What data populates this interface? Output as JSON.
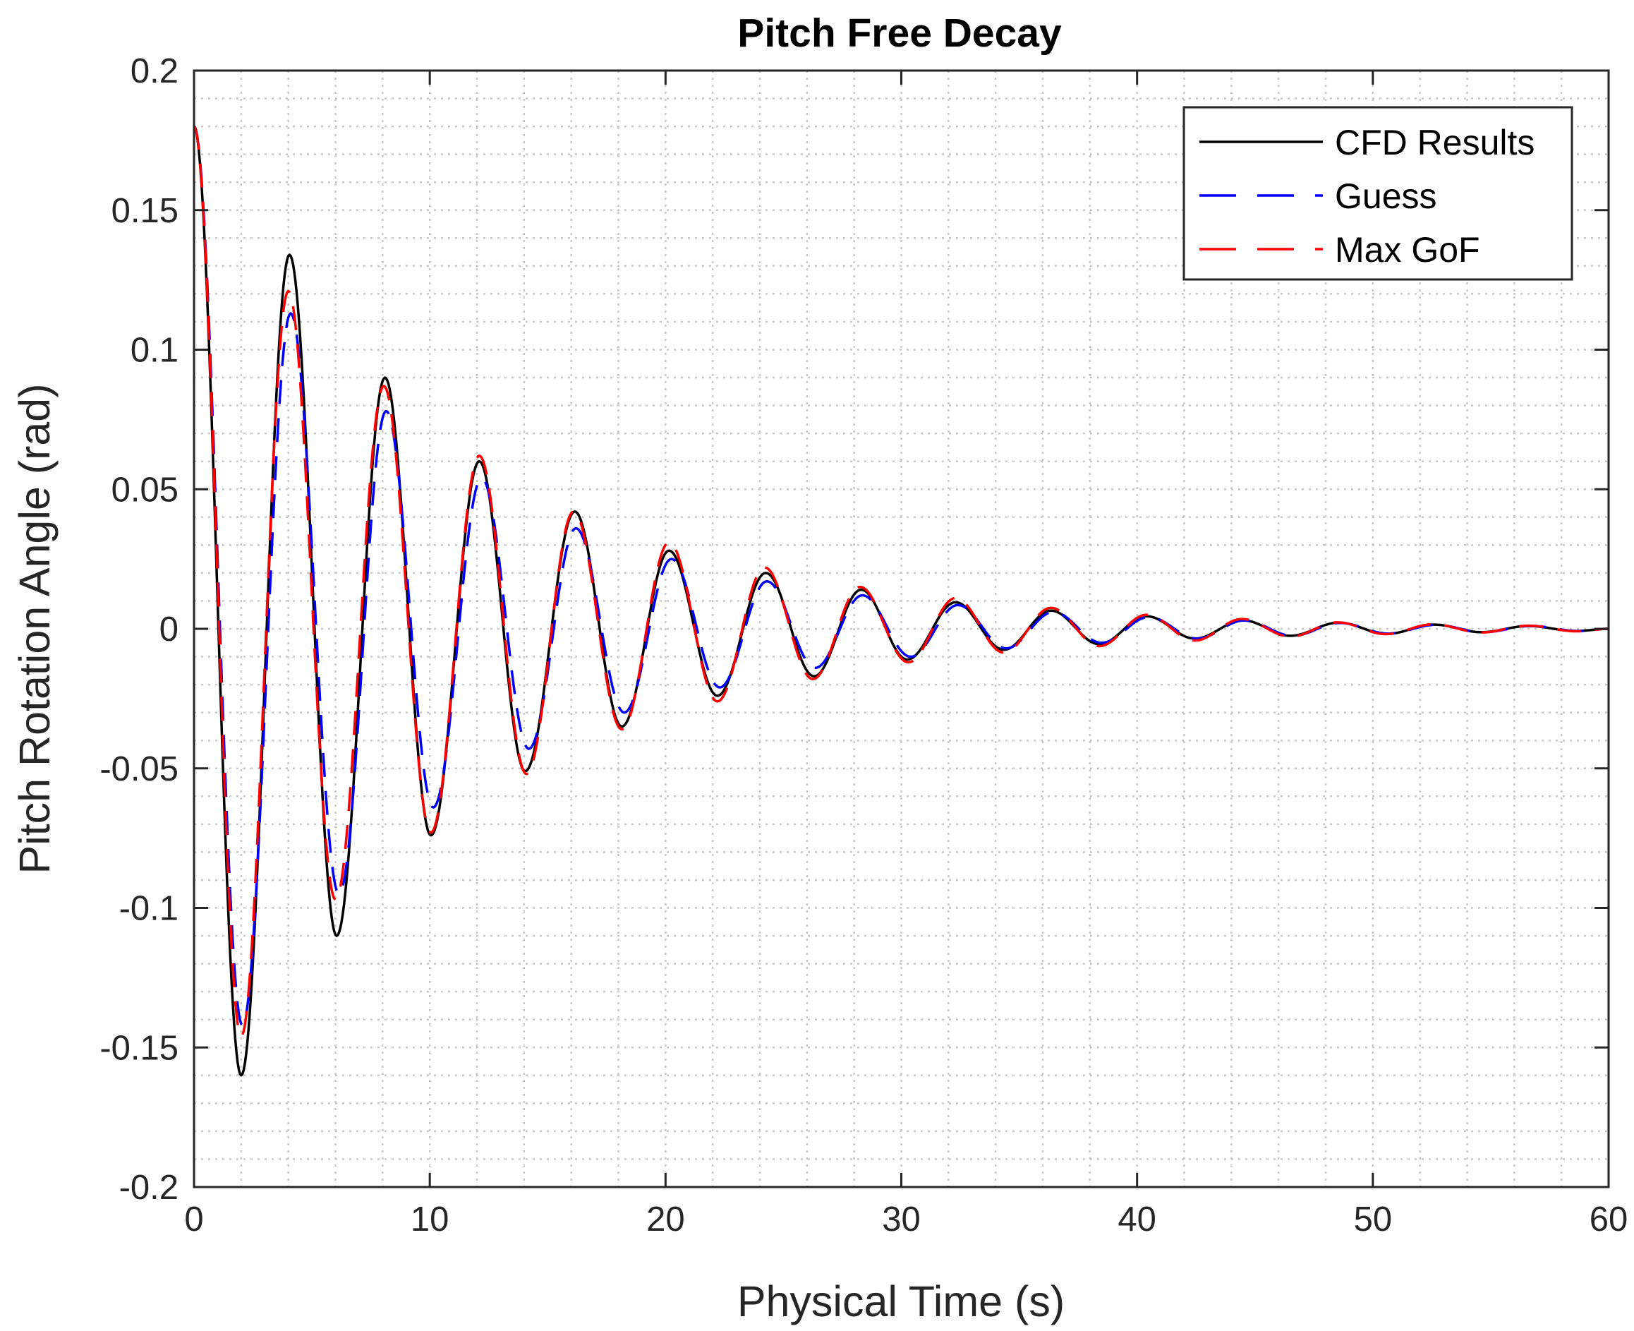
{
  "chart_data": {
    "type": "line",
    "title": "Pitch Free Decay",
    "xlabel": "Physical Time (s)",
    "ylabel": "Pitch Rotation Angle (rad)",
    "xlim": [
      0,
      60
    ],
    "ylim": [
      -0.2,
      0.2
    ],
    "x_ticks": [
      0,
      10,
      20,
      30,
      40,
      50,
      60
    ],
    "x_tick_labels": [
      "0",
      "10",
      "20",
      "30",
      "40",
      "50",
      "60"
    ],
    "y_ticks": [
      -0.2,
      -0.15,
      -0.1,
      -0.05,
      0,
      0.05,
      0.1,
      0.15,
      0.2
    ],
    "y_tick_labels": [
      "-0.2",
      "-0.15",
      "-0.1",
      "-0.05",
      "0",
      "0.05",
      "0.1",
      "0.15",
      "0.2"
    ],
    "x_minor_step": 2,
    "y_minor_step": 0.01,
    "grid": "major and minor, dotted",
    "legend_position": "top-right",
    "series": [
      {
        "name": "CFD Results",
        "color": "#000000",
        "style": "solid",
        "x": [
          0,
          2.0,
          4.05,
          6.05,
          8.1,
          10.05,
          12.1,
          14.05,
          16.15,
          18.15,
          20.15,
          22.2,
          24.25,
          26.3,
          28.3,
          30.25,
          32.3,
          34.35,
          36.35,
          38.4,
          40.4,
          42.45,
          44.5,
          46.5,
          48.55,
          50.6,
          52.6,
          54.6,
          56.6,
          58.6,
          60
        ],
        "y": [
          0.18,
          -0.16,
          0.134,
          -0.11,
          0.09,
          -0.074,
          0.06,
          -0.051,
          0.042,
          -0.035,
          0.028,
          -0.024,
          0.02,
          -0.017,
          0.014,
          -0.011,
          0.0095,
          -0.0075,
          0.0065,
          -0.0055,
          0.0045,
          -0.0035,
          0.003,
          -0.0025,
          0.0022,
          -0.0018,
          0.0015,
          -0.0012,
          0.001,
          -0.0008,
          0.0
        ]
      },
      {
        "name": "Guess",
        "color": "#0000ff",
        "style": "dashed",
        "x": [
          0,
          2.05,
          4.1,
          6.15,
          8.15,
          10.15,
          12.2,
          14.2,
          16.2,
          18.25,
          20.25,
          22.3,
          24.3,
          26.35,
          28.35,
          30.4,
          32.4,
          34.45,
          36.45,
          38.5,
          40.5,
          42.55,
          44.55,
          46.6,
          48.6,
          50.65,
          52.65,
          54.7,
          56.7,
          58.75,
          60
        ],
        "y": [
          0.18,
          -0.142,
          0.113,
          -0.095,
          0.078,
          -0.064,
          0.054,
          -0.043,
          0.036,
          -0.03,
          0.025,
          -0.021,
          0.017,
          -0.014,
          0.012,
          -0.01,
          0.0085,
          -0.007,
          0.006,
          -0.005,
          0.0042,
          -0.0035,
          0.003,
          -0.0025,
          0.0021,
          -0.0017,
          0.0014,
          -0.0012,
          0.001,
          -0.0008,
          0.0
        ]
      },
      {
        "name": "Max GoF",
        "color": "#ff0000",
        "style": "dashed",
        "x": [
          0,
          2.0,
          4.0,
          6.0,
          8.05,
          10.05,
          12.1,
          14.1,
          16.1,
          18.15,
          20.15,
          22.2,
          24.2,
          26.25,
          28.25,
          30.3,
          32.3,
          34.35,
          36.35,
          38.4,
          40.4,
          42.45,
          44.45,
          46.5,
          48.5,
          50.55,
          52.55,
          54.6,
          56.6,
          58.65,
          60
        ],
        "y": [
          0.18,
          -0.146,
          0.121,
          -0.097,
          0.087,
          -0.073,
          0.062,
          -0.052,
          0.042,
          -0.036,
          0.031,
          -0.026,
          0.022,
          -0.018,
          0.015,
          -0.012,
          0.011,
          -0.0085,
          0.0075,
          -0.0062,
          0.005,
          -0.0042,
          0.0035,
          -0.0028,
          0.0023,
          -0.0019,
          0.0016,
          -0.0013,
          0.0011,
          -0.0009,
          0.0
        ]
      }
    ]
  }
}
